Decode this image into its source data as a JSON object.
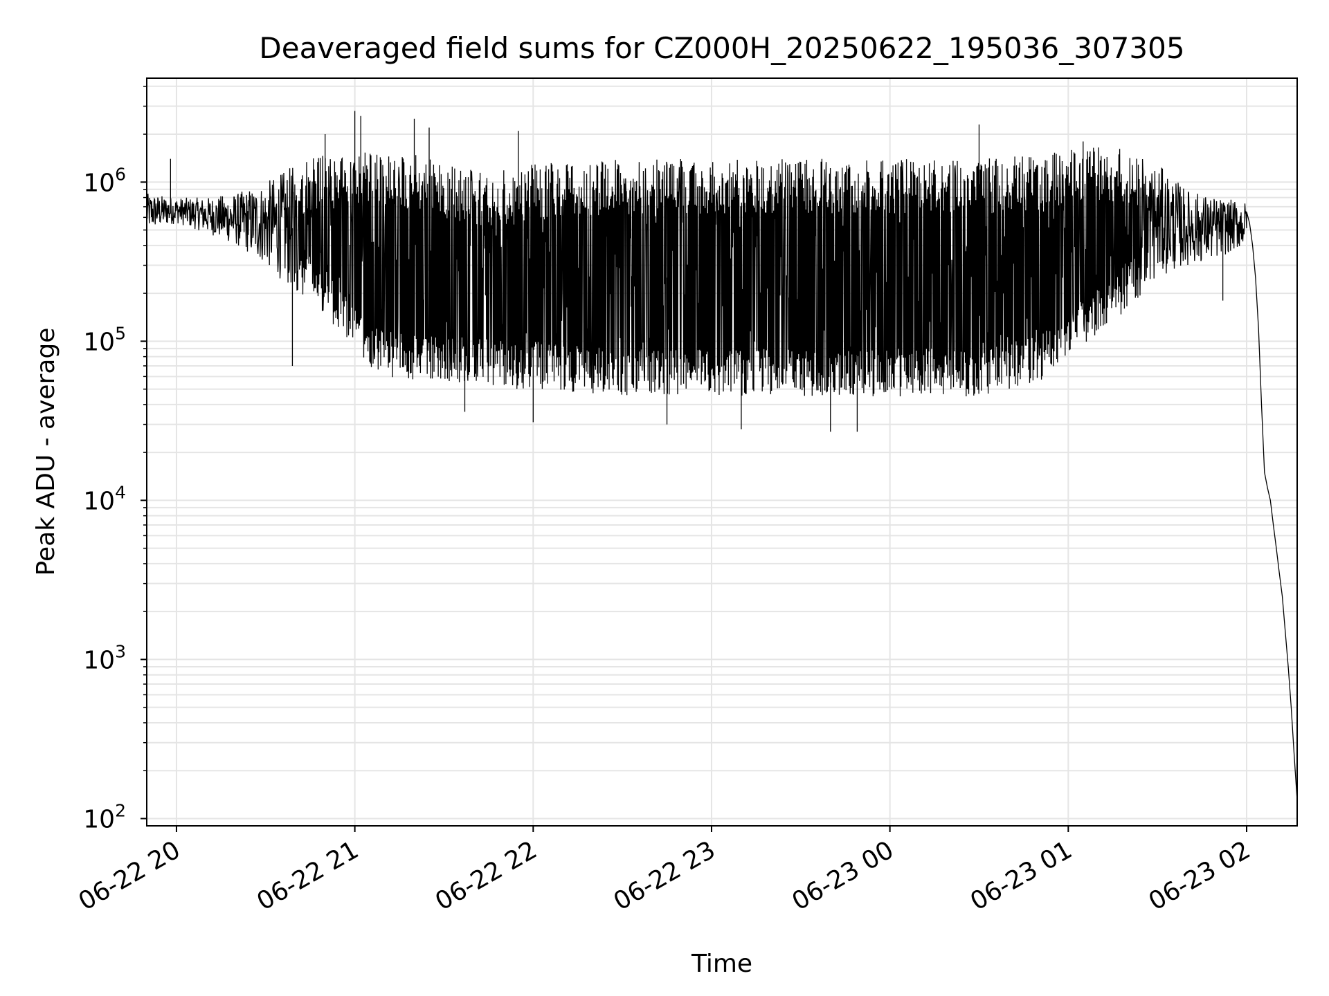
{
  "chart_data": {
    "type": "line",
    "title": "Deaveraged field sums for CZ000H_20250622_195036_307305",
    "xlabel": "Time",
    "ylabel": "Peak ADU - average",
    "yscale": "log",
    "ylim": [
      90,
      4500000
    ],
    "xlim": [
      "2025-06-22 19:50",
      "2025-06-23 02:17"
    ],
    "grid": true,
    "line_color": "#000000",
    "grid_color": "#e5e5e5",
    "x_ticks": [
      {
        "t": "2025-06-22 20:00",
        "label": "06-22 20"
      },
      {
        "t": "2025-06-22 21:00",
        "label": "06-22 21"
      },
      {
        "t": "2025-06-22 22:00",
        "label": "06-22 22"
      },
      {
        "t": "2025-06-22 23:00",
        "label": "06-22 23"
      },
      {
        "t": "2025-06-23 00:00",
        "label": "06-23 00"
      },
      {
        "t": "2025-06-23 01:00",
        "label": "06-23 01"
      },
      {
        "t": "2025-06-23 02:00",
        "label": "06-23 02"
      }
    ],
    "y_ticks": [
      {
        "value": 100,
        "base": "10",
        "exp": "2"
      },
      {
        "value": 1000,
        "base": "10",
        "exp": "3"
      },
      {
        "value": 10000,
        "base": "10",
        "exp": "4"
      },
      {
        "value": 100000,
        "base": "10",
        "exp": "5"
      },
      {
        "value": 1000000,
        "base": "10",
        "exp": "6"
      }
    ],
    "series": [
      {
        "envelope": [
          {
            "t": "2025-06-22 19:50",
            "low": 500000,
            "high": 850000
          },
          {
            "t": "2025-06-22 20:00",
            "low": 550000,
            "high": 800000
          },
          {
            "t": "2025-06-22 20:10",
            "low": 480000,
            "high": 800000
          },
          {
            "t": "2025-06-22 20:20",
            "low": 400000,
            "high": 850000
          },
          {
            "t": "2025-06-22 20:30",
            "low": 300000,
            "high": 1000000
          },
          {
            "t": "2025-06-22 20:40",
            "low": 200000,
            "high": 1300000
          },
          {
            "t": "2025-06-22 20:50",
            "low": 150000,
            "high": 1500000
          },
          {
            "t": "2025-06-22 21:00",
            "low": 80000,
            "high": 1600000
          },
          {
            "t": "2025-06-22 21:10",
            "low": 60000,
            "high": 1500000
          },
          {
            "t": "2025-06-22 21:20",
            "low": 55000,
            "high": 1500000
          },
          {
            "t": "2025-06-22 21:30",
            "low": 55000,
            "high": 1300000
          },
          {
            "t": "2025-06-22 21:40",
            "low": 55000,
            "high": 1200000
          },
          {
            "t": "2025-06-22 21:50",
            "low": 50000,
            "high": 1200000
          },
          {
            "t": "2025-06-22 22:00",
            "low": 50000,
            "high": 1300000
          },
          {
            "t": "2025-06-22 22:30",
            "low": 45000,
            "high": 1400000
          },
          {
            "t": "2025-06-22 23:00",
            "low": 45000,
            "high": 1400000
          },
          {
            "t": "2025-06-22 23:30",
            "low": 45000,
            "high": 1400000
          },
          {
            "t": "2025-06-23 00:00",
            "low": 45000,
            "high": 1400000
          },
          {
            "t": "2025-06-23 00:30",
            "low": 45000,
            "high": 1400000
          },
          {
            "t": "2025-06-23 00:50",
            "low": 55000,
            "high": 1500000
          },
          {
            "t": "2025-06-23 01:00",
            "low": 80000,
            "high": 1600000
          },
          {
            "t": "2025-06-23 01:10",
            "low": 110000,
            "high": 1700000
          },
          {
            "t": "2025-06-23 01:20",
            "low": 160000,
            "high": 1600000
          },
          {
            "t": "2025-06-23 01:30",
            "low": 250000,
            "high": 1300000
          },
          {
            "t": "2025-06-23 01:40",
            "low": 300000,
            "high": 900000
          },
          {
            "t": "2025-06-23 01:50",
            "low": 330000,
            "high": 800000
          },
          {
            "t": "2025-06-23 02:00",
            "low": 400000,
            "high": 750000
          }
        ],
        "spikes": [
          {
            "t": "2025-06-22 19:58",
            "value": 1400000
          },
          {
            "t": "2025-06-22 20:39",
            "value": 70000
          },
          {
            "t": "2025-06-22 20:50",
            "value": 2000000
          },
          {
            "t": "2025-06-22 21:00",
            "value": 2800000
          },
          {
            "t": "2025-06-22 21:02",
            "value": 2600000
          },
          {
            "t": "2025-06-22 21:20",
            "value": 2500000
          },
          {
            "t": "2025-06-22 21:25",
            "value": 2200000
          },
          {
            "t": "2025-06-22 21:37",
            "value": 36000
          },
          {
            "t": "2025-06-22 21:55",
            "value": 2100000
          },
          {
            "t": "2025-06-22 22:00",
            "value": 31000
          },
          {
            "t": "2025-06-22 22:45",
            "value": 30000
          },
          {
            "t": "2025-06-22 23:10",
            "value": 28000
          },
          {
            "t": "2025-06-22 23:40",
            "value": 27000
          },
          {
            "t": "2025-06-22 23:49",
            "value": 27000
          },
          {
            "t": "2025-06-23 00:30",
            "value": 2300000
          },
          {
            "t": "2025-06-23 01:05",
            "value": 1800000
          },
          {
            "t": "2025-06-23 01:52",
            "value": 180000
          }
        ],
        "tail": [
          {
            "t": "2025-06-23 02:00",
            "value": 650000
          },
          {
            "t": "2025-06-23 02:01",
            "value": 550000
          },
          {
            "t": "2025-06-23 02:02",
            "value": 400000
          },
          {
            "t": "2025-06-23 02:03",
            "value": 250000
          },
          {
            "t": "2025-06-23 02:04",
            "value": 120000
          },
          {
            "t": "2025-06-23 02:05",
            "value": 40000
          },
          {
            "t": "2025-06-23 02:06",
            "value": 15000
          },
          {
            "t": "2025-06-23 02:07",
            "value": 12000
          },
          {
            "t": "2025-06-23 02:08",
            "value": 10000
          },
          {
            "t": "2025-06-23 02:09",
            "value": 7000
          },
          {
            "t": "2025-06-23 02:10",
            "value": 5000
          },
          {
            "t": "2025-06-23 02:11",
            "value": 3500
          },
          {
            "t": "2025-06-23 02:12",
            "value": 2500
          },
          {
            "t": "2025-06-23 02:13",
            "value": 1500
          },
          {
            "t": "2025-06-23 02:14",
            "value": 900
          },
          {
            "t": "2025-06-23 02:15",
            "value": 500
          },
          {
            "t": "2025-06-23 02:16",
            "value": 250
          },
          {
            "t": "2025-06-23 02:17",
            "value": 130
          }
        ]
      }
    ]
  }
}
